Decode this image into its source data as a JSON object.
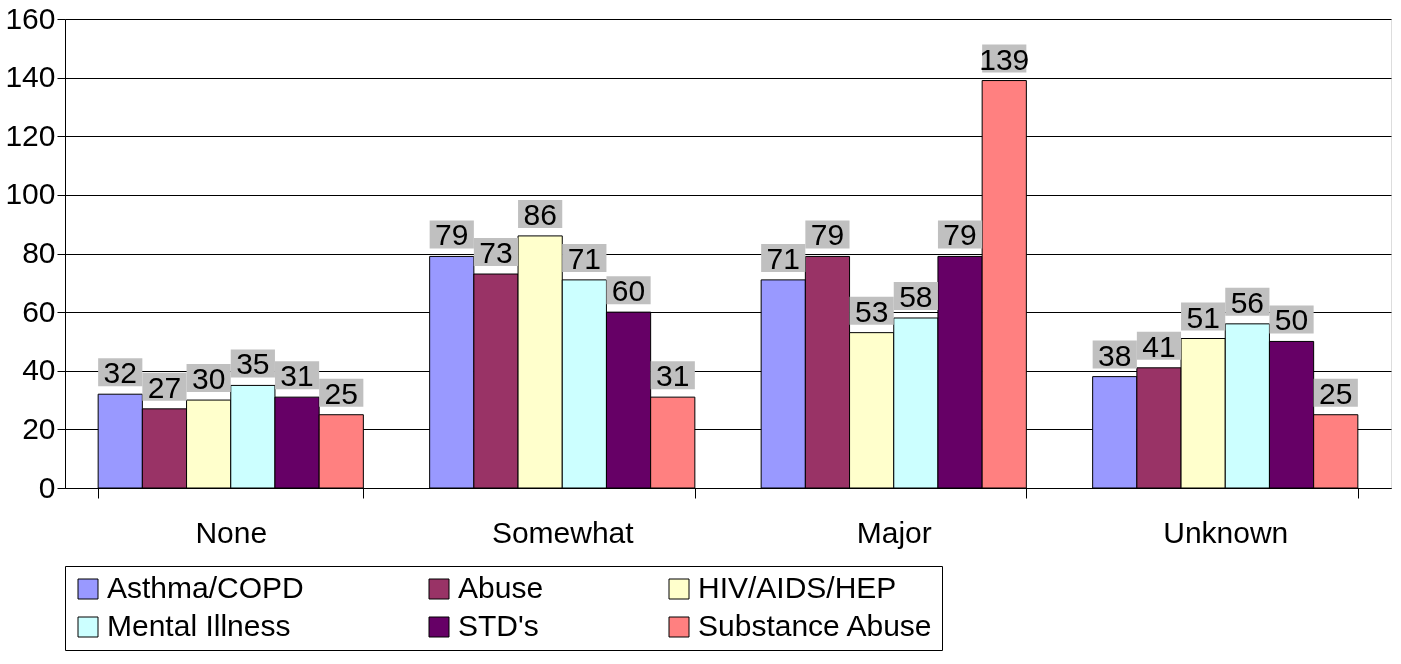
{
  "chart_data": {
    "type": "bar",
    "categories": [
      "None",
      "Somewhat",
      "Major",
      "Unknown"
    ],
    "series": [
      {
        "name": "Asthma/COPD",
        "color": "#9999ff",
        "values": [
          32,
          79,
          71,
          38
        ]
      },
      {
        "name": "Abuse",
        "color": "#993366",
        "values": [
          27,
          73,
          79,
          41
        ]
      },
      {
        "name": "HIV/AIDS/HEP",
        "color": "#ffffcc",
        "values": [
          30,
          86,
          53,
          51
        ]
      },
      {
        "name": "Mental Illness",
        "color": "#ccffff",
        "values": [
          35,
          71,
          58,
          56
        ]
      },
      {
        "name": "STD's",
        "color": "#660066",
        "values": [
          31,
          60,
          79,
          50
        ]
      },
      {
        "name": "Substance Abuse",
        "color": "#ff8080",
        "values": [
          25,
          31,
          139,
          25
        ]
      }
    ],
    "ylim": [
      0,
      160
    ],
    "yticks": [
      0,
      20,
      40,
      60,
      80,
      100,
      120,
      140,
      160
    ],
    "grid": "y",
    "legend": "bottom",
    "data_labels": true
  }
}
